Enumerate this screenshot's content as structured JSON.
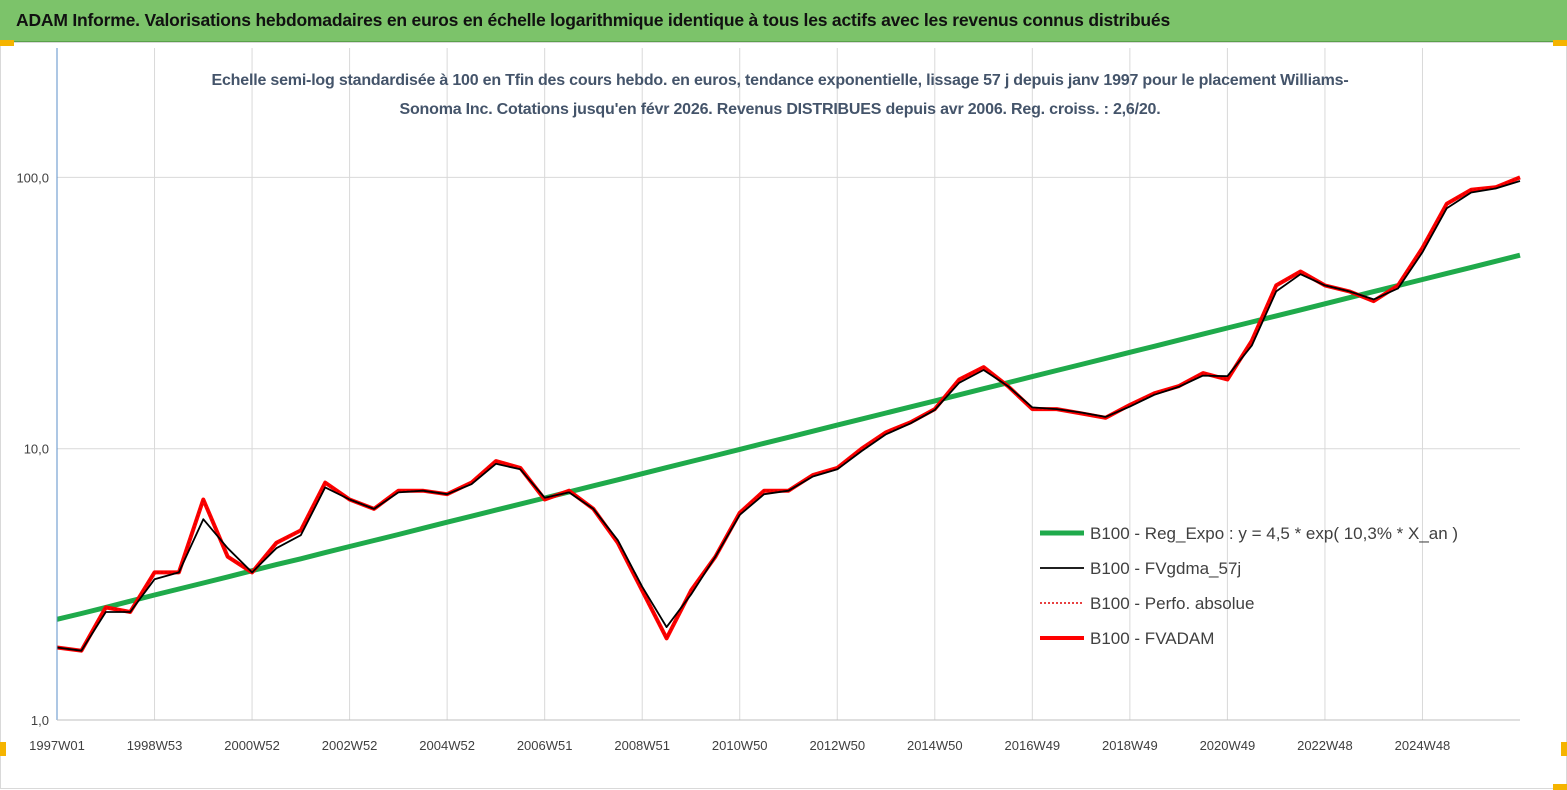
{
  "chart_data": {
    "type": "line",
    "header": "ADAM Informe. Valorisations hebdomadaires en euros en échelle logarithmique identique à tous les actifs avec les revenus connus distribués",
    "title": "Echelle semi-log standardisée à 100 en Tfin des cours hebdo. en euros, tendance exponentielle, lissage 57 j depuis janv 1997 pour le placement Williams-Sonoma Inc. Cotations jusqu'en févr 2026. Revenus DISTRIBUES  depuis avr 2006. Reg. croiss. : 2,6/20.",
    "log_scale": true,
    "grid": true,
    "legend_position": "right",
    "ylim": [
      1,
      300
    ],
    "yticks": [
      {
        "value": 1,
        "label": "1,0"
      },
      {
        "value": 10,
        "label": "10,0"
      },
      {
        "value": 100,
        "label": "100,0"
      }
    ],
    "categories": [
      "1997W01",
      null,
      null,
      null,
      "1998W53",
      null,
      null,
      null,
      "2000W52",
      null,
      null,
      null,
      "2002W52",
      null,
      null,
      null,
      "2004W52",
      null,
      null,
      null,
      "2006W51",
      null,
      null,
      null,
      "2008W51",
      null,
      null,
      null,
      "2010W50",
      null,
      null,
      null,
      "2012W50",
      null,
      null,
      null,
      "2014W50",
      null,
      null,
      null,
      "2016W49",
      null,
      null,
      null,
      "2018W49",
      null,
      null,
      null,
      "2020W49",
      null,
      null,
      null,
      "2022W48",
      null,
      null,
      null,
      "2024W48",
      null,
      null,
      null,
      null
    ],
    "series": [
      {
        "name": "B100 - Reg_Expo : y = 4,5 * exp( 10,3% *  X_an )",
        "color": "#1faa4b",
        "width": 5,
        "dashed": false,
        "values": [
          2.35,
          2.47,
          2.6,
          2.74,
          2.89,
          3.04,
          3.2,
          3.37,
          3.55,
          3.74,
          3.93,
          4.14,
          4.36,
          4.59,
          4.83,
          5.09,
          5.36,
          5.64,
          5.94,
          6.25,
          6.58,
          6.93,
          7.3,
          7.68,
          8.09,
          8.52,
          8.97,
          9.44,
          9.94,
          10.47,
          11.02,
          11.6,
          12.22,
          12.86,
          13.54,
          14.26,
          15.01,
          15.8,
          16.64,
          17.52,
          18.44,
          19.42,
          20.44,
          21.52,
          22.66,
          23.86,
          25.12,
          26.45,
          27.85,
          29.32,
          30.87,
          32.5,
          34.22,
          36.03,
          37.93,
          39.94,
          42.05,
          44.27,
          46.61,
          49.08,
          51.67
        ]
      },
      {
        "name": "B100 - FVgdma_57j",
        "color": "#000000",
        "width": 1.8,
        "dashed": false,
        "values": [
          1.85,
          1.8,
          2.5,
          2.5,
          3.3,
          3.5,
          5.5,
          4.3,
          3.5,
          4.3,
          4.8,
          7.2,
          6.5,
          6.0,
          6.9,
          7.0,
          6.8,
          7.4,
          8.8,
          8.4,
          6.6,
          6.9,
          6.0,
          4.6,
          3.1,
          2.2,
          2.9,
          4.0,
          5.7,
          6.8,
          7.0,
          7.9,
          8.4,
          9.8,
          11.3,
          12.4,
          13.9,
          17.5,
          19.5,
          17.0,
          14.2,
          14.0,
          13.6,
          13.1,
          14.3,
          15.8,
          16.9,
          18.6,
          18.5,
          24.0,
          38.0,
          44.0,
          40.0,
          38.0,
          35.5,
          39.0,
          53.0,
          77.0,
          88.0,
          91.0,
          97.0
        ]
      },
      {
        "name": "B100 - Perfo. absolue",
        "color": "#e00000",
        "width": 1.5,
        "dashed": true,
        "values": [
          1.85,
          1.8,
          2.6,
          2.5,
          3.5,
          3.5,
          6.5,
          4.0,
          3.5,
          4.5,
          5.0,
          7.5,
          6.5,
          6.0,
          7.0,
          7.0,
          6.8,
          7.5,
          9.0,
          8.5,
          6.5,
          7.0,
          6.0,
          4.5,
          3.0,
          2.0,
          3.0,
          4.0,
          5.8,
          7.0,
          7.0,
          8.0,
          8.5,
          10.0,
          11.5,
          12.5,
          14.0,
          18.0,
          20.0,
          17.0,
          14.0,
          14.0,
          13.5,
          13.0,
          14.5,
          16.0,
          17.0,
          19.0,
          18.0,
          25.0,
          40.0,
          45.0,
          40.0,
          38.0,
          35.0,
          40.0,
          55.0,
          80.0,
          90.0,
          92.0,
          100.0
        ]
      },
      {
        "name": "B100 - FVADAM",
        "color": "#ff0000",
        "width": 4,
        "dashed": false,
        "values": [
          1.85,
          1.8,
          2.6,
          2.5,
          3.5,
          3.5,
          6.5,
          4.0,
          3.5,
          4.5,
          5.0,
          7.5,
          6.5,
          6.0,
          7.0,
          7.0,
          6.8,
          7.5,
          9.0,
          8.5,
          6.5,
          7.0,
          6.0,
          4.5,
          3.0,
          2.0,
          3.0,
          4.0,
          5.8,
          7.0,
          7.0,
          8.0,
          8.5,
          10.0,
          11.5,
          12.5,
          14.0,
          18.0,
          20.0,
          17.0,
          14.0,
          14.0,
          13.5,
          13.0,
          14.5,
          16.0,
          17.0,
          19.0,
          18.0,
          25.0,
          40.0,
          45.0,
          40.0,
          38.0,
          35.0,
          40.0,
          55.0,
          80.0,
          90.0,
          92.0,
          100.0
        ]
      }
    ]
  }
}
